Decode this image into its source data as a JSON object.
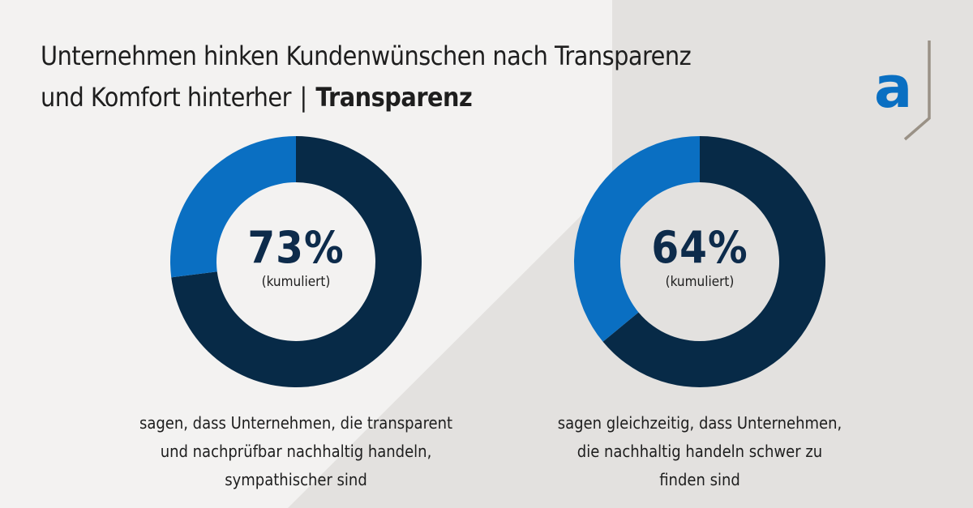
{
  "header": {
    "title_line1": "Unternehmen hinken Kundenwünschen nach Transparenz",
    "title_line2": "und Komfort hinterher",
    "separator": "|",
    "title_bold": "Transparenz"
  },
  "logo": {
    "letter": "a",
    "color": "#0a6fc2",
    "frame_color": "#9a9186"
  },
  "colors": {
    "primary": "#072a47",
    "secondary": "#0a6fc2",
    "bg_light": "#f3f2f1",
    "bg_dark": "#e3e1df"
  },
  "chart_data": [
    {
      "type": "pie",
      "variant": "donut",
      "slices": [
        {
          "label": "73%",
          "value": 73,
          "color": "#072a47"
        },
        {
          "label": "",
          "value": 27,
          "color": "#0a6fc2"
        }
      ],
      "center_value": "73%",
      "center_note": "(kumuliert)",
      "caption": [
        "sagen, dass Unternehmen, die transparent",
        "und nachprüfbar nachhaltig handeln,",
        "sympathischer sind"
      ]
    },
    {
      "type": "pie",
      "variant": "donut",
      "slices": [
        {
          "label": "64%",
          "value": 64,
          "color": "#072a47"
        },
        {
          "label": "",
          "value": 36,
          "color": "#0a6fc2"
        }
      ],
      "center_value": "64%",
      "center_note": "(kumuliert)",
      "caption": [
        "sagen gleichzeitig, dass Unternehmen,",
        "die nachhaltig handeln schwer zu",
        "finden sind"
      ]
    }
  ]
}
